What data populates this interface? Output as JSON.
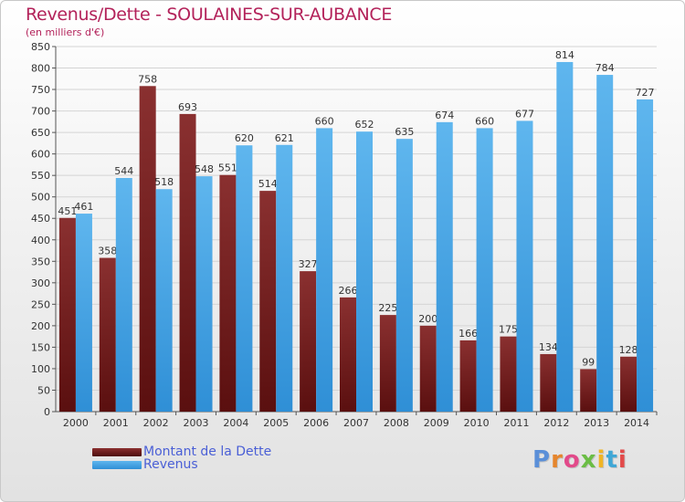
{
  "header": {
    "title": "Revenus/Dette - SOULAINES-SUR-AUBANCE",
    "subtitle": "(en milliers d'€)"
  },
  "legend": {
    "items": [
      {
        "label": "Montant de la Dette",
        "color": "#7a1c1c"
      },
      {
        "label": "Revenus",
        "color": "#4aa5e6"
      }
    ]
  },
  "logo": {
    "text": "Proxiti",
    "letter_colors": [
      "#5a8fd8",
      "#e5862e",
      "#e24a8a",
      "#6bbd45",
      "#f0b526",
      "#3fa7d6",
      "#e24a4a"
    ]
  },
  "chart_data": {
    "type": "bar",
    "title": "Revenus/Dette - SOULAINES-SUR-AUBANCE",
    "ylabel": "(en milliers d'€)",
    "xlabel": "",
    "ylim": [
      0,
      850
    ],
    "ytick_step": 50,
    "grid": true,
    "legend_position": "bottom-left",
    "categories": [
      "2000",
      "2001",
      "2002",
      "2003",
      "2004",
      "2005",
      "2006",
      "2007",
      "2008",
      "2009",
      "2010",
      "2011",
      "2012",
      "2013",
      "2014"
    ],
    "series": [
      {
        "name": "Montant de la Dette",
        "color_top": "#8a3030",
        "color_bottom": "#5a0f0f",
        "values": [
          451,
          358,
          758,
          693,
          551,
          514,
          327,
          266,
          225,
          200,
          166,
          175,
          134,
          99,
          128
        ]
      },
      {
        "name": "Revenus",
        "color_top": "#5fb6ee",
        "color_bottom": "#2f8fd6",
        "values": [
          461,
          544,
          518,
          548,
          620,
          621,
          660,
          652,
          635,
          674,
          660,
          677,
          814,
          784,
          727
        ]
      }
    ]
  }
}
